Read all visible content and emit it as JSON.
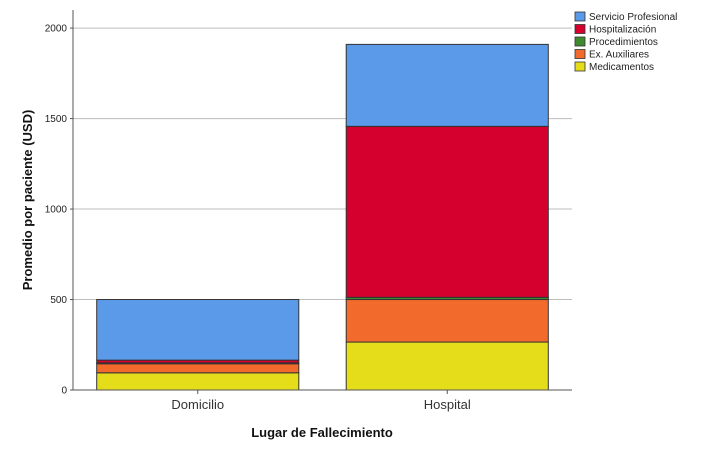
{
  "chart_data": {
    "type": "bar",
    "stacked": true,
    "categories": [
      "Domicilio",
      "Hospital"
    ],
    "series": [
      {
        "name": "Medicamentos",
        "color": "#e5dc1a",
        "values": [
          95,
          265
        ]
      },
      {
        "name": "Ex. Auxiliares",
        "color": "#f26b2d",
        "values": [
          50,
          235
        ]
      },
      {
        "name": "Procedimientos",
        "color": "#3f8a2e",
        "values": [
          5,
          12
        ]
      },
      {
        "name": "Hospitalización",
        "color": "#d6002f",
        "values": [
          15,
          945
        ]
      },
      {
        "name": "Servicio Profesional",
        "color": "#5b9ae8",
        "values": [
          335,
          453
        ]
      }
    ],
    "legend_order": [
      "Servicio Profesional",
      "Hospitalización",
      "Procedimientos",
      "Ex. Auxiliares",
      "Medicamentos"
    ],
    "xlabel": "Lugar de Fallecimiento",
    "ylabel": "Promedio por paciente (USD)",
    "ylim": [
      0,
      2100
    ],
    "yticks": [
      0,
      500,
      1000,
      1500,
      2000
    ],
    "grid": true,
    "legend_position": "top-right"
  }
}
